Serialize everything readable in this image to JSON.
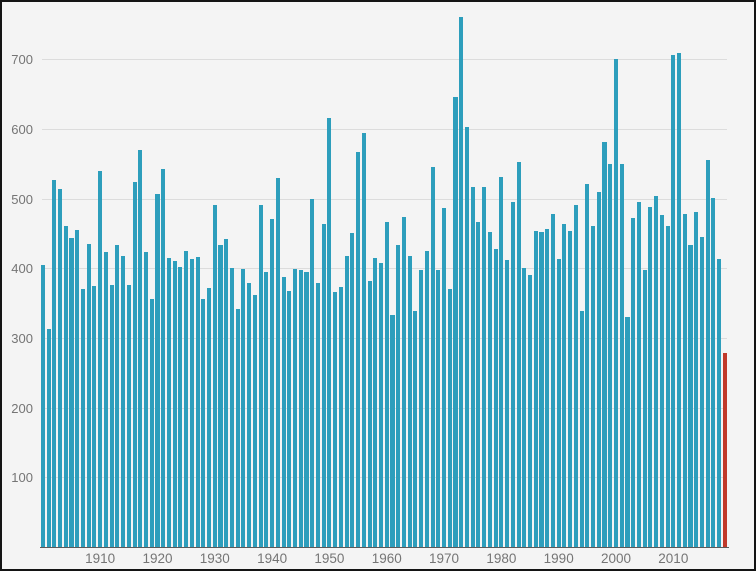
{
  "chart_data": {
    "type": "bar",
    "title": "",
    "xlabel": "",
    "ylabel": "",
    "x_start_year": 1900,
    "x_end_year": 2019,
    "values": [
      405,
      313,
      527,
      513,
      460,
      443,
      455,
      370,
      435,
      375,
      540,
      423,
      376,
      434,
      417,
      376,
      523,
      570,
      423,
      356,
      507,
      542,
      414,
      411,
      402,
      424,
      413,
      416,
      356,
      371,
      490,
      434,
      442,
      400,
      342,
      399,
      379,
      361,
      490,
      394,
      471,
      529,
      387,
      368,
      399,
      398,
      395,
      500,
      379,
      464,
      615,
      366,
      373,
      418,
      450,
      567,
      594,
      381,
      415,
      408,
      467,
      333,
      433,
      474,
      418,
      339,
      397,
      424,
      545,
      397,
      486,
      370,
      646,
      760,
      602,
      516,
      466,
      517,
      452,
      428,
      531,
      412,
      495,
      553,
      401,
      390,
      453,
      452,
      456,
      478,
      413,
      464,
      454,
      490,
      339,
      521,
      461,
      510,
      581,
      550,
      700,
      549,
      330,
      472,
      495,
      397,
      488,
      504,
      477,
      460,
      706,
      709,
      478,
      433,
      481,
      445,
      555,
      501,
      413,
      278
    ],
    "bar_color": "#2d9ebc",
    "highlight": {
      "year": 2019,
      "value": 278,
      "color": "#c03a2b"
    },
    "y_ticks": [
      100,
      200,
      300,
      400,
      500,
      600,
      700
    ],
    "x_ticks": [
      1910,
      1920,
      1930,
      1940,
      1950,
      1960,
      1970,
      1980,
      1990,
      2000,
      2010
    ],
    "ylim": [
      0,
      770
    ],
    "grid": "horizontal",
    "legend": "none",
    "background_color": "#f4f4f4",
    "gridline_color": "#dcdcdc",
    "axis_label_color": "#757575",
    "axis_line_color": "#5a5a5a"
  }
}
